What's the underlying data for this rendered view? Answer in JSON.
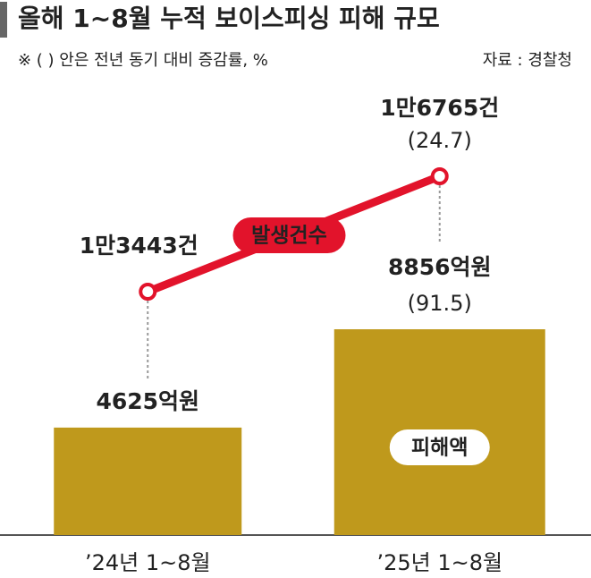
{
  "chart_data": {
    "type": "bar",
    "title": "올해 1~8월 누적 보이스피싱 피해 규모",
    "subtitle": "※ ( ) 안은 전년 동기 대비 증감률, %",
    "source": "자료 : 경찰청",
    "categories": [
      "’24년 1~8월",
      "’25년 1~8월"
    ],
    "series": [
      {
        "name": "피해액",
        "type": "bar",
        "color": "#bf991c",
        "values": [
          4625,
          8856
        ],
        "value_labels": [
          "4625억원",
          "8856억원"
        ],
        "change_labels": [
          null,
          "(91.5)"
        ]
      },
      {
        "name": "발생건수",
        "type": "line",
        "color": "#e2132b",
        "values": [
          13443,
          16765
        ],
        "value_labels": [
          "1만3443건",
          "1만6765건"
        ],
        "change_labels": [
          null,
          "(24.7)"
        ]
      }
    ]
  }
}
